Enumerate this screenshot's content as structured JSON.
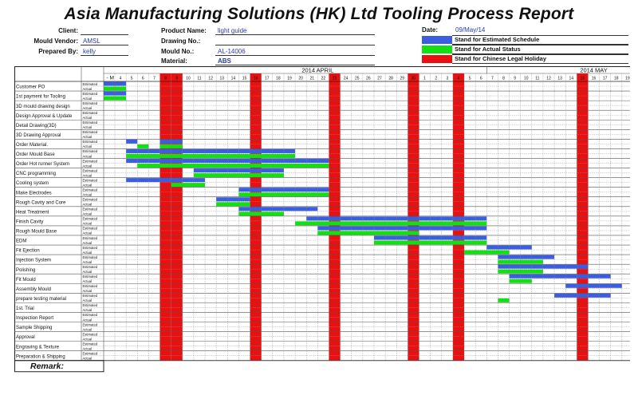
{
  "report": {
    "title": "Asia Manufacturing Solutions (HK)  Ltd  Tooling  Process Report"
  },
  "header": {
    "client_label": "Client:",
    "client_value": "",
    "vendor_label": "Mould Vendor:",
    "vendor_value": "AMSL",
    "prepared_label": "Prepared By:",
    "prepared_value": "kelly",
    "product_label": "Product Name:",
    "product_value": "light guide",
    "drawing_label": "Drawing No.:",
    "drawing_value": "",
    "mould_label": "Mould No.:",
    "mould_value": "AL-14006",
    "material_label": "Material:",
    "material_value": "ABS",
    "date_label": "Date:",
    "date_value": "09/May/14"
  },
  "legend": [
    {
      "color": "#3b5ee0",
      "text": "Stand for Estimated Schedule"
    },
    {
      "color": "#12e012",
      "text": "Stand for Actual Status"
    },
    {
      "color": "#e81010",
      "text": "Stand for Chinese Legal Holiday"
    }
  ],
  "colors": {
    "estimated": "#3b5ee0",
    "actual": "#12e012",
    "holiday": "#e81010",
    "today": "#2b3b8c"
  },
  "months": [
    {
      "label": "2014 APRIL",
      "from": 4,
      "to": 33
    },
    {
      "label": "2014 MAY",
      "from": 34,
      "to": 52
    }
  ],
  "first_header": "M",
  "days": [
    "4",
    "5",
    "6",
    "7",
    "8",
    "9",
    "10",
    "11",
    "12",
    "13",
    "14",
    "15",
    "16",
    "17",
    "18",
    "19",
    "20",
    "21",
    "22",
    "23",
    "24",
    "25",
    "26",
    "27",
    "28",
    "29",
    "30",
    "1",
    "2",
    "3",
    "4",
    "5",
    "6",
    "7",
    "8",
    "9",
    "10",
    "11",
    "12",
    "13",
    "14",
    "15",
    "16",
    "17",
    "18",
    "19"
  ],
  "holiday_cols": [
    5,
    6,
    13,
    20,
    27,
    31,
    42,
    50
  ],
  "sub_labels": [
    "Estimated",
    "Actual"
  ],
  "tasks": [
    {
      "name": "Customer PO",
      "est": [
        [
          0,
          1
        ]
      ],
      "act": [
        [
          0,
          1
        ]
      ]
    },
    {
      "name": "1st payment for Tooling",
      "est": [
        [
          0,
          1
        ]
      ],
      "act": [
        [
          0,
          1
        ]
      ]
    },
    {
      "name": "3D mould drawing design",
      "est": [],
      "act": []
    },
    {
      "name": "Design Approval & Update",
      "est": [],
      "act": []
    },
    {
      "name": "Detail Drawing(3D)",
      "est": [],
      "act": []
    },
    {
      "name": "3D Drawing Approval",
      "est": [],
      "act": []
    },
    {
      "name": "Order Material.",
      "est": [
        [
          2,
          2
        ],
        [
          5,
          6
        ]
      ],
      "act": [
        [
          3,
          3
        ],
        [
          5,
          6
        ]
      ]
    },
    {
      "name": "Order Mould Base",
      "est": [
        [
          2,
          16
        ]
      ],
      "act": [
        [
          2,
          16
        ]
      ]
    },
    {
      "name": "Order Hot runner System",
      "est": [
        [
          2,
          19
        ]
      ],
      "act": [
        [
          3,
          19
        ]
      ]
    },
    {
      "name": "CNC programming",
      "est": [
        [
          8,
          15
        ]
      ],
      "act": [
        [
          8,
          15
        ]
      ]
    },
    {
      "name": "Cooling system",
      "est": [
        [
          2,
          8
        ]
      ],
      "act": [
        [
          6,
          8
        ]
      ]
    },
    {
      "name": "Make Electrodes",
      "est": [
        [
          12,
          19
        ]
      ],
      "act": [
        [
          12,
          19
        ]
      ]
    },
    {
      "name": "Rough Cavity and Core",
      "est": [
        [
          10,
          12
        ]
      ],
      "act": [
        [
          10,
          12
        ]
      ]
    },
    {
      "name": "Heat Treatment",
      "est": [
        [
          12,
          18
        ]
      ],
      "act": [
        [
          12,
          15
        ]
      ]
    },
    {
      "name": "Finish Cavity",
      "est": [
        [
          18,
          33
        ]
      ],
      "act": [
        [
          17,
          33
        ]
      ]
    },
    {
      "name": "Rough Mould Base",
      "est": [
        [
          19,
          33
        ]
      ],
      "act": [
        [
          19,
          27
        ]
      ]
    },
    {
      "name": "EDM",
      "est": [
        [
          24,
          33
        ]
      ],
      "act": [
        [
          24,
          33
        ]
      ]
    },
    {
      "name": "Fit Ejection",
      "est": [
        [
          34,
          37
        ]
      ],
      "act": [
        [
          32,
          35
        ]
      ]
    },
    {
      "name": "Injection System",
      "est": [
        [
          35,
          39
        ]
      ],
      "act": [
        [
          35,
          38
        ]
      ]
    },
    {
      "name": "Polishing",
      "est": [
        [
          35,
          42
        ]
      ],
      "act": [
        [
          35,
          38
        ]
      ]
    },
    {
      "name": "Fit Mould",
      "est": [
        [
          36,
          44
        ]
      ],
      "act": [
        [
          36,
          37
        ]
      ]
    },
    {
      "name": "Assembly Mould",
      "est": [
        [
          41,
          45
        ]
      ],
      "act": []
    },
    {
      "name": "prepare testing material",
      "est": [
        [
          40,
          44
        ]
      ],
      "act": [
        [
          35,
          35
        ]
      ]
    },
    {
      "name": "1st. Trial",
      "est": [],
      "act": []
    },
    {
      "name": "Inspection Report",
      "est": [],
      "act": []
    },
    {
      "name": "Sample Shipping",
      "est": [],
      "act": []
    },
    {
      "name": "Approval",
      "est": [],
      "act": []
    },
    {
      "name": "Engraving & Texture",
      "est": [],
      "act": []
    },
    {
      "name": "Preparation & Shipping",
      "est": [],
      "act": []
    }
  ],
  "remark_label": "Remark:"
}
